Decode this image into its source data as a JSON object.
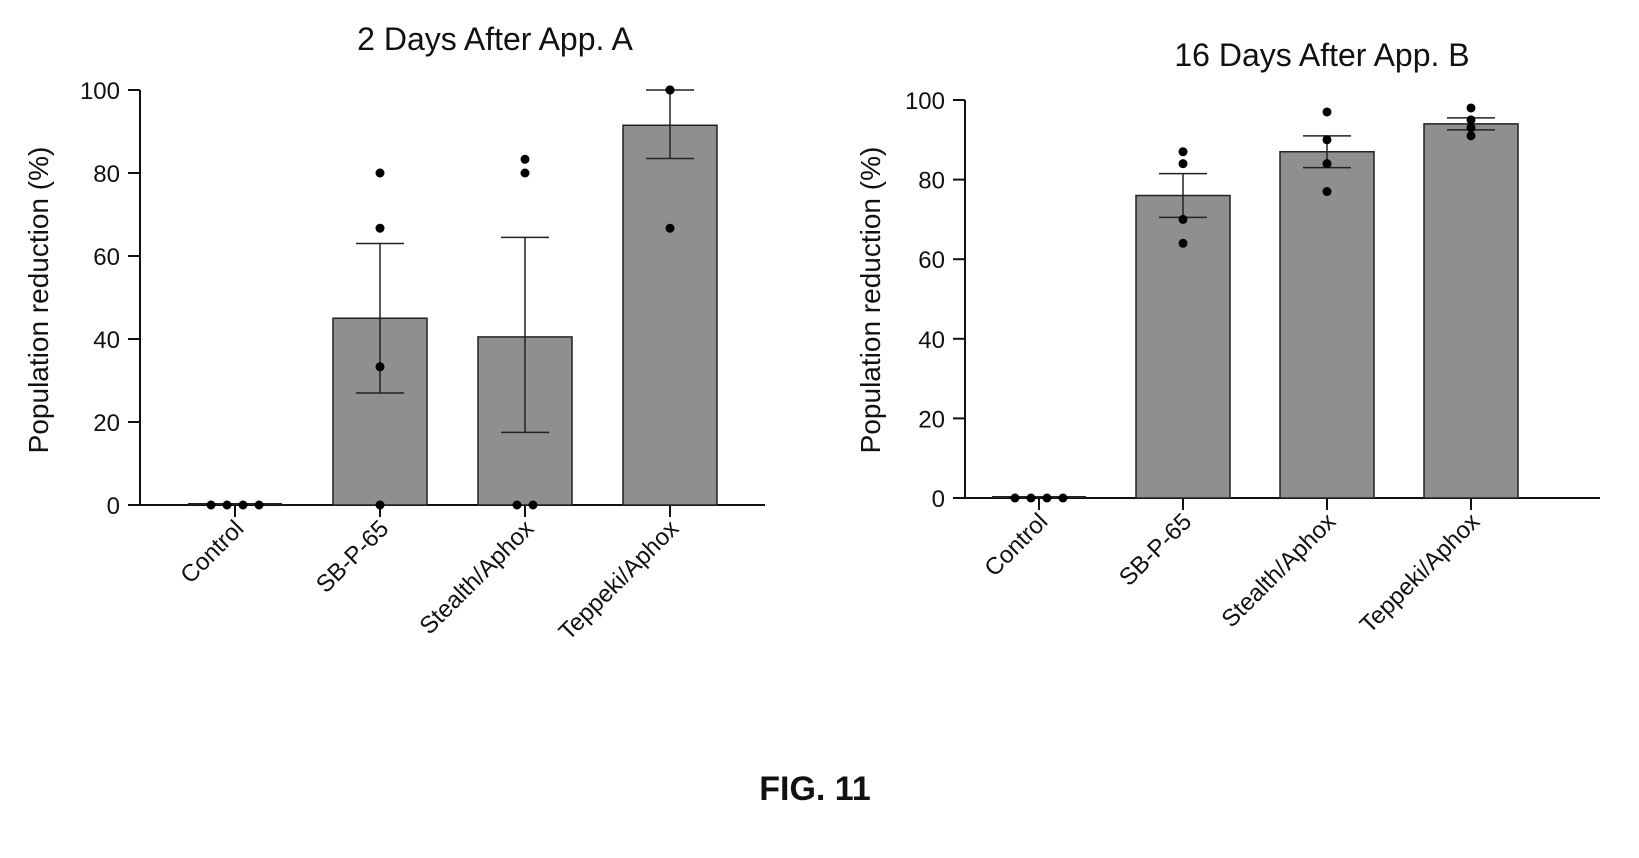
{
  "figure": {
    "caption": "FIG. 11"
  },
  "chart_data": [
    {
      "type": "bar",
      "title": "2  Days After  App.  A",
      "xlabel": "",
      "ylabel": "Population reduction (%)",
      "ylim": [
        0,
        100
      ],
      "yticks": [
        0,
        20,
        40,
        60,
        80,
        100
      ],
      "categories": [
        "Control",
        "SB-P-65",
        "Stealth/Aphox",
        "Teppeki/Aphox"
      ],
      "values": [
        0,
        45,
        40.5,
        91.5
      ],
      "error_low": [
        0,
        27,
        17.5,
        83.5
      ],
      "error_high": [
        0,
        63,
        64.5,
        100
      ],
      "points": [
        [
          0,
          0,
          0,
          0
        ],
        [
          0,
          33.3,
          66.7,
          80
        ],
        [
          0,
          0,
          80,
          83.3
        ],
        [
          66.7,
          100,
          100,
          100
        ]
      ],
      "grid": false,
      "bar_color": "#8f8f8f"
    },
    {
      "type": "bar",
      "title": "16 Days After App.  B",
      "xlabel": "",
      "ylabel": "Population reduction (%)",
      "ylim": [
        0,
        100
      ],
      "yticks": [
        0,
        20,
        40,
        60,
        80,
        100
      ],
      "categories": [
        "Control",
        "SB-P-65",
        "Stealth/Aphox",
        "Teppeki/Aphox"
      ],
      "values": [
        0,
        76,
        87,
        94
      ],
      "error_low": [
        0,
        70.5,
        83,
        92.5
      ],
      "error_high": [
        0,
        81.5,
        91,
        95.5
      ],
      "points": [
        [
          0,
          0,
          0,
          0
        ],
        [
          64,
          70,
          84,
          87
        ],
        [
          77,
          84,
          90,
          97
        ],
        [
          91,
          93,
          95,
          98
        ]
      ],
      "grid": false,
      "bar_color": "#8f8f8f"
    }
  ]
}
